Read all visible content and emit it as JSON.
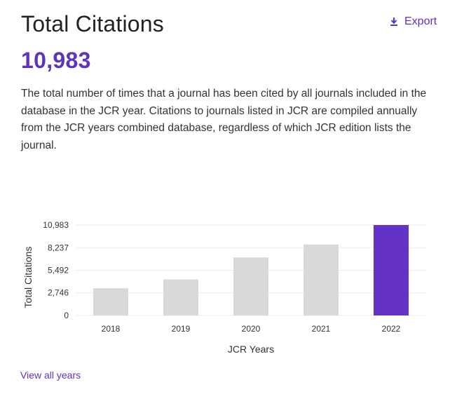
{
  "header": {
    "title": "Total Citations",
    "export_label": "Export",
    "export_icon": "download-icon"
  },
  "metric": {
    "value": "10,983"
  },
  "description": "The total number of times that a journal has been cited by all journals included in the database in the JCR year. Citations to journals listed in JCR are compiled annually from the JCR years combined database, regardless of which JCR edition lists the journal.",
  "footer": {
    "view_all_label": "View all years"
  },
  "colors": {
    "accent": "#5e33bf",
    "bar": "#d9d9d9",
    "bar_highlight": "#6432c6"
  },
  "chart_data": {
    "type": "bar",
    "categories": [
      "2018",
      "2019",
      "2020",
      "2021",
      "2022"
    ],
    "values": [
      3300,
      4370,
      7050,
      8620,
      10983
    ],
    "highlight": "2022",
    "xlabel": "JCR Years",
    "ylabel": "Total Citations",
    "ylim": [
      0,
      10983
    ],
    "yticks": [
      0,
      2746,
      5492,
      8237,
      10983
    ],
    "ytick_labels": [
      "0",
      "2,746",
      "5,492",
      "8,237",
      "10,983"
    ],
    "grid": true,
    "legend": "none"
  }
}
